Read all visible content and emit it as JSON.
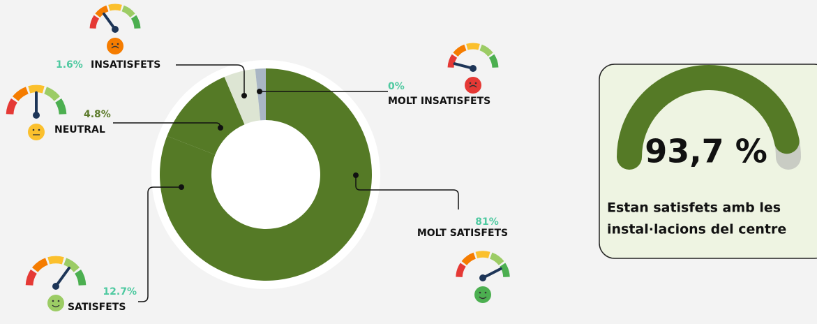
{
  "chart_data": {
    "type": "donut",
    "categories": [
      "MOLT SATISFETS",
      "SATISFETS",
      "NEUTRAL",
      "INSATISFETS",
      "MOLT INSATISFETS"
    ],
    "values": [
      81,
      12.7,
      4.8,
      1.6,
      0
    ],
    "value_labels": [
      "81%",
      "12.7%",
      "4.8%",
      "1.6%",
      "0%"
    ],
    "colors": [
      "#557a26",
      "#557a26",
      "#dde5d3",
      "#a9b6c4",
      "#7a9a8a"
    ]
  },
  "panel": {
    "gauge": {
      "value": 93.7,
      "label": "93,7 %"
    },
    "text": [
      "Estan satisfets amb les",
      "instal·lacions del  centre"
    ]
  }
}
